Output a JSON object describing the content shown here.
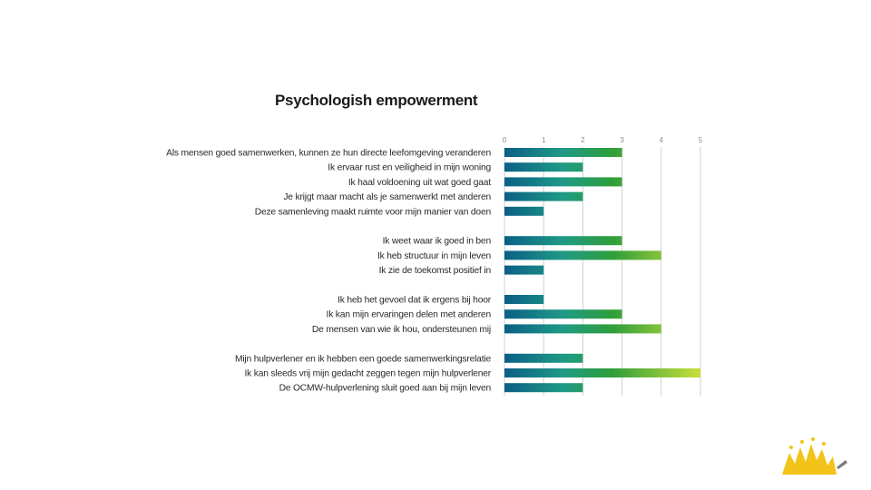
{
  "chart_data": {
    "type": "bar",
    "orientation": "horizontal",
    "title": "Psychologish empowerment",
    "xlim": [
      0,
      5
    ],
    "ticks": [
      "0",
      "1",
      "2",
      "3",
      "4",
      "5"
    ],
    "grid": true,
    "groups": [
      {
        "items": [
          {
            "label": "Als mensen goed samenwerken, kunnen ze hun directe leefomgeving veranderen",
            "value": 3
          },
          {
            "label": "Ik ervaar rust en veiligheid in mijn woning",
            "value": 2
          },
          {
            "label": "Ik haal voldoening uit wat goed gaat",
            "value": 3
          },
          {
            "label": "Je krijgt maar macht als je samenwerkt met anderen",
            "value": 2
          },
          {
            "label": "Deze samenleving maakt ruimte voor mijn manier van doen",
            "value": 1
          }
        ]
      },
      {
        "items": [
          {
            "label": "Ik weet waar ik goed in ben",
            "value": 3
          },
          {
            "label": "Ik heb structuur in mijn leven",
            "value": 4
          },
          {
            "label": "Ik zie de toekomst positief in",
            "value": 1
          }
        ]
      },
      {
        "items": [
          {
            "label": "Ik heb het gevoel dat ik ergens bij hoor",
            "value": 1
          },
          {
            "label": "Ik kan mijn ervaringen delen met anderen",
            "value": 3
          },
          {
            "label": "De mensen van wie ik hou, ondersteunen mij",
            "value": 4
          }
        ]
      },
      {
        "items": [
          {
            "label": "Mijn hulpverlener en ik hebben een goede samenwerkingsrelatie",
            "value": 2
          },
          {
            "label": "Ik kan sleeds vrij mijn gedacht zeggen tegen mijn hulpverlener",
            "value": 5
          },
          {
            "label": "De OCMW-hulpverlening sluit goed aan bij mijn leven",
            "value": 2
          }
        ]
      }
    ],
    "colors": {
      "bar_start": "#0b5f86",
      "bar_mid": "#1f9a86",
      "bar_green": "#2f9e3a",
      "bar_lime": "#c9df3a",
      "grid": "#d0d0d0",
      "label": "#2a2a2a",
      "tick": "#8a8a8a"
    }
  },
  "logo": {
    "icon": "sunburst-logo-icon",
    "color": "#f2c318",
    "accent": "#7a7a7a"
  }
}
